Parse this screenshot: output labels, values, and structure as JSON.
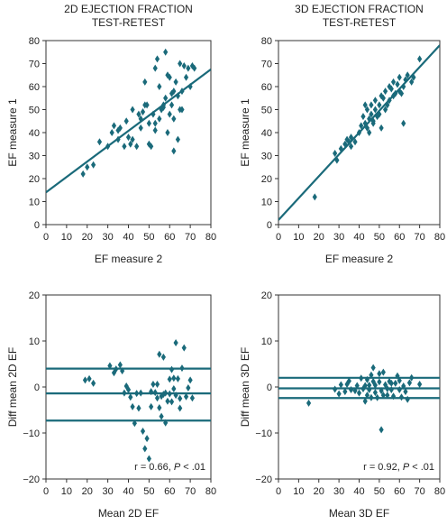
{
  "colors": {
    "marker": "#1a6a7a",
    "axis": "#333333",
    "background": "#ffffff"
  },
  "chart_data": [
    {
      "type": "scatter",
      "title_line1": "2D EJECTION FRACTION",
      "title_line2": "TEST-RETEST",
      "xlabel": "EF measure 2",
      "ylabel": "EF measure 1",
      "xlim": [
        0,
        80
      ],
      "ylim": [
        0,
        80
      ],
      "xticks": [
        "0",
        "10",
        "20",
        "30",
        "40",
        "50",
        "60",
        "70",
        "80"
      ],
      "yticks": [
        "0",
        "10",
        "20",
        "30",
        "40",
        "50",
        "60",
        "70",
        "80"
      ],
      "regression_line": {
        "x": [
          0,
          80
        ],
        "y": [
          14,
          67.5
        ]
      },
      "points": [
        [
          18,
          22
        ],
        [
          20,
          25
        ],
        [
          23,
          26
        ],
        [
          26,
          36
        ],
        [
          30,
          34
        ],
        [
          32,
          40
        ],
        [
          33,
          43
        ],
        [
          35,
          37
        ],
        [
          35,
          41
        ],
        [
          36,
          42
        ],
        [
          38,
          34
        ],
        [
          39,
          45
        ],
        [
          40,
          38
        ],
        [
          41,
          35
        ],
        [
          42,
          37
        ],
        [
          42,
          50
        ],
        [
          44,
          34
        ],
        [
          45,
          48
        ],
        [
          46,
          42
        ],
        [
          46,
          46
        ],
        [
          47,
          49
        ],
        [
          48,
          52
        ],
        [
          48,
          62
        ],
        [
          49,
          52
        ],
        [
          50,
          44
        ],
        [
          50,
          35
        ],
        [
          51,
          34
        ],
        [
          52,
          48
        ],
        [
          53,
          41
        ],
        [
          53,
          44
        ],
        [
          53,
          68
        ],
        [
          54,
          72
        ],
        [
          55,
          46
        ],
        [
          55,
          60
        ],
        [
          56,
          50
        ],
        [
          57,
          52
        ],
        [
          57,
          51
        ],
        [
          58,
          75
        ],
        [
          58,
          55
        ],
        [
          59,
          65
        ],
        [
          59,
          40
        ],
        [
          60,
          64
        ],
        [
          60,
          48
        ],
        [
          61,
          52
        ],
        [
          61,
          57
        ],
        [
          62,
          58
        ],
        [
          62,
          46
        ],
        [
          62,
          32
        ],
        [
          63,
          62
        ],
        [
          64,
          37
        ],
        [
          64,
          56
        ],
        [
          65,
          50
        ],
        [
          65,
          70
        ],
        [
          66,
          58
        ],
        [
          66,
          50
        ],
        [
          67,
          69
        ],
        [
          68,
          64
        ],
        [
          69,
          68
        ],
        [
          70,
          60
        ],
        [
          71,
          69
        ],
        [
          72,
          68
        ]
      ]
    },
    {
      "type": "scatter",
      "title_line1": "3D EJECTION FRACTION",
      "title_line2": "TEST-RETEST",
      "xlabel": "EF measure 2",
      "ylabel": "EF measure 1",
      "xlim": [
        0,
        80
      ],
      "ylim": [
        0,
        80
      ],
      "xticks": [
        "0",
        "10",
        "20",
        "30",
        "40",
        "50",
        "60",
        "70",
        "80"
      ],
      "yticks": [
        "0",
        "10",
        "20",
        "30",
        "40",
        "50",
        "60",
        "70",
        "80"
      ],
      "regression_line": {
        "x": [
          0,
          80
        ],
        "y": [
          2,
          78
        ]
      },
      "points": [
        [
          18,
          12
        ],
        [
          28,
          31
        ],
        [
          29,
          28
        ],
        [
          31,
          33
        ],
        [
          33,
          35
        ],
        [
          34,
          37
        ],
        [
          35,
          36
        ],
        [
          36,
          34
        ],
        [
          36,
          38
        ],
        [
          38,
          36
        ],
        [
          40,
          40
        ],
        [
          41,
          43
        ],
        [
          42,
          47
        ],
        [
          43,
          44
        ],
        [
          43,
          52
        ],
        [
          44,
          42
        ],
        [
          44,
          50
        ],
        [
          45,
          40
        ],
        [
          45,
          46
        ],
        [
          46,
          48
        ],
        [
          46,
          52
        ],
        [
          47,
          44
        ],
        [
          47,
          45
        ],
        [
          48,
          50
        ],
        [
          48,
          54
        ],
        [
          49,
          47
        ],
        [
          50,
          52
        ],
        [
          50,
          48
        ],
        [
          51,
          56
        ],
        [
          51,
          42
        ],
        [
          52,
          55
        ],
        [
          53,
          50
        ],
        [
          53,
          58
        ],
        [
          54,
          52
        ],
        [
          55,
          60
        ],
        [
          55,
          54
        ],
        [
          56,
          59
        ],
        [
          57,
          56
        ],
        [
          57,
          62
        ],
        [
          58,
          57
        ],
        [
          59,
          61
        ],
        [
          60,
          58
        ],
        [
          60,
          64
        ],
        [
          61,
          57
        ],
        [
          62,
          60
        ],
        [
          62,
          44
        ],
        [
          63,
          63
        ],
        [
          64,
          65
        ],
        [
          66,
          62
        ],
        [
          67,
          64
        ],
        [
          70,
          72
        ]
      ]
    },
    {
      "type": "scatter",
      "xlabel": "Mean 2D EF",
      "ylabel": "Diff mean 2D EF",
      "xlim": [
        0,
        80
      ],
      "ylim": [
        -20,
        20
      ],
      "xticks": [
        "0",
        "10",
        "20",
        "30",
        "40",
        "50",
        "60",
        "70",
        "80"
      ],
      "yticks": [
        "−20",
        "−10",
        "0",
        "10",
        "20"
      ],
      "ytick_values": [
        -20,
        -10,
        0,
        10,
        20
      ],
      "hlines": [
        4,
        -1.4,
        -7.3
      ],
      "annotation_prefix": "r = 0.66, ",
      "annotation_p": "P",
      "annotation_suffix": " < .01",
      "points": [
        [
          19,
          1.5
        ],
        [
          21,
          1.8
        ],
        [
          23,
          0.8
        ],
        [
          31,
          4.6
        ],
        [
          33,
          3.1
        ],
        [
          34,
          3.9
        ],
        [
          36,
          4.8
        ],
        [
          37,
          3.5
        ],
        [
          38,
          -1.3
        ],
        [
          39,
          0.2
        ],
        [
          40,
          -0.6
        ],
        [
          41,
          -2.2
        ],
        [
          42,
          -4.3
        ],
        [
          43,
          -7.9
        ],
        [
          44,
          -1.4
        ],
        [
          45,
          -4.6
        ],
        [
          46,
          -1.3
        ],
        [
          47,
          -9.6
        ],
        [
          48,
          -13.4
        ],
        [
          49,
          -11.2
        ],
        [
          50,
          -15.6
        ],
        [
          51,
          -1.0
        ],
        [
          51,
          -4.3
        ],
        [
          52,
          0.6
        ],
        [
          53,
          -1.2
        ],
        [
          54,
          -2.4
        ],
        [
          54,
          0.6
        ],
        [
          55,
          -4.5
        ],
        [
          55,
          7.1
        ],
        [
          56,
          -6.4
        ],
        [
          56,
          -2.0
        ],
        [
          57,
          6.5
        ],
        [
          57,
          -1.6
        ],
        [
          58,
          -7.8
        ],
        [
          58,
          -1.3
        ],
        [
          59,
          -3.1
        ],
        [
          60,
          1.7
        ],
        [
          60,
          -1.5
        ],
        [
          61,
          -3.2
        ],
        [
          61,
          3.8
        ],
        [
          62,
          -0.4
        ],
        [
          62,
          1.9
        ],
        [
          63,
          -1.8
        ],
        [
          63,
          9.6
        ],
        [
          64,
          1.8
        ],
        [
          65,
          -2.5
        ],
        [
          65,
          -4.6
        ],
        [
          66,
          4.1
        ],
        [
          67,
          8.5
        ],
        [
          68,
          -2.1
        ],
        [
          69,
          -0.2
        ],
        [
          70,
          1.5
        ],
        [
          71,
          -2.4
        ]
      ]
    },
    {
      "type": "scatter",
      "xlabel": "Mean 3D EF",
      "ylabel": "Diff mean 3D EF",
      "xlim": [
        0,
        80
      ],
      "ylim": [
        -20,
        20
      ],
      "xticks": [
        "0",
        "10",
        "20",
        "30",
        "40",
        "50",
        "60",
        "70",
        "80"
      ],
      "yticks": [
        "−20",
        "−10",
        "0",
        "10",
        "20"
      ],
      "ytick_values": [
        -20,
        -10,
        0,
        10,
        20
      ],
      "hlines": [
        2,
        -0.3,
        -2.4
      ],
      "annotation_prefix": "r = 0.92, ",
      "annotation_p": "P",
      "annotation_suffix": " < .01",
      "points": [
        [
          15,
          -3.5
        ],
        [
          28,
          -0.5
        ],
        [
          30,
          -1.5
        ],
        [
          31,
          0.5
        ],
        [
          33,
          -1.0
        ],
        [
          34,
          0.6
        ],
        [
          35,
          1.3
        ],
        [
          36,
          -0.6
        ],
        [
          38,
          -0.8
        ],
        [
          39,
          0.3
        ],
        [
          40,
          -1.3
        ],
        [
          41,
          1.9
        ],
        [
          42,
          -0.4
        ],
        [
          43,
          0.3
        ],
        [
          43,
          -3.1
        ],
        [
          44,
          -1.8
        ],
        [
          44,
          1.6
        ],
        [
          45,
          -0.6
        ],
        [
          45,
          0.4
        ],
        [
          46,
          2.6
        ],
        [
          46,
          -2.3
        ],
        [
          47,
          1.2
        ],
        [
          47,
          4.2
        ],
        [
          48,
          0.4
        ],
        [
          48,
          -1.2
        ],
        [
          49,
          -2.3
        ],
        [
          50,
          2.9
        ],
        [
          50,
          1.1
        ],
        [
          51,
          -0.8
        ],
        [
          51,
          -9.3
        ],
        [
          52,
          3.2
        ],
        [
          52,
          -1.8
        ],
        [
          53,
          0.5
        ],
        [
          54,
          -0.4
        ],
        [
          54,
          -1.8
        ],
        [
          55,
          1.2
        ],
        [
          56,
          0.8
        ],
        [
          56,
          -0.6
        ],
        [
          57,
          -2.0
        ],
        [
          58,
          0.8
        ],
        [
          59,
          2.4
        ],
        [
          60,
          -0.6
        ],
        [
          60,
          1.4
        ],
        [
          61,
          -2.2
        ],
        [
          62,
          0.2
        ],
        [
          63,
          -1.0
        ],
        [
          64,
          -2.7
        ],
        [
          65,
          0.9
        ],
        [
          66,
          2.0
        ],
        [
          70,
          0.6
        ]
      ]
    }
  ]
}
